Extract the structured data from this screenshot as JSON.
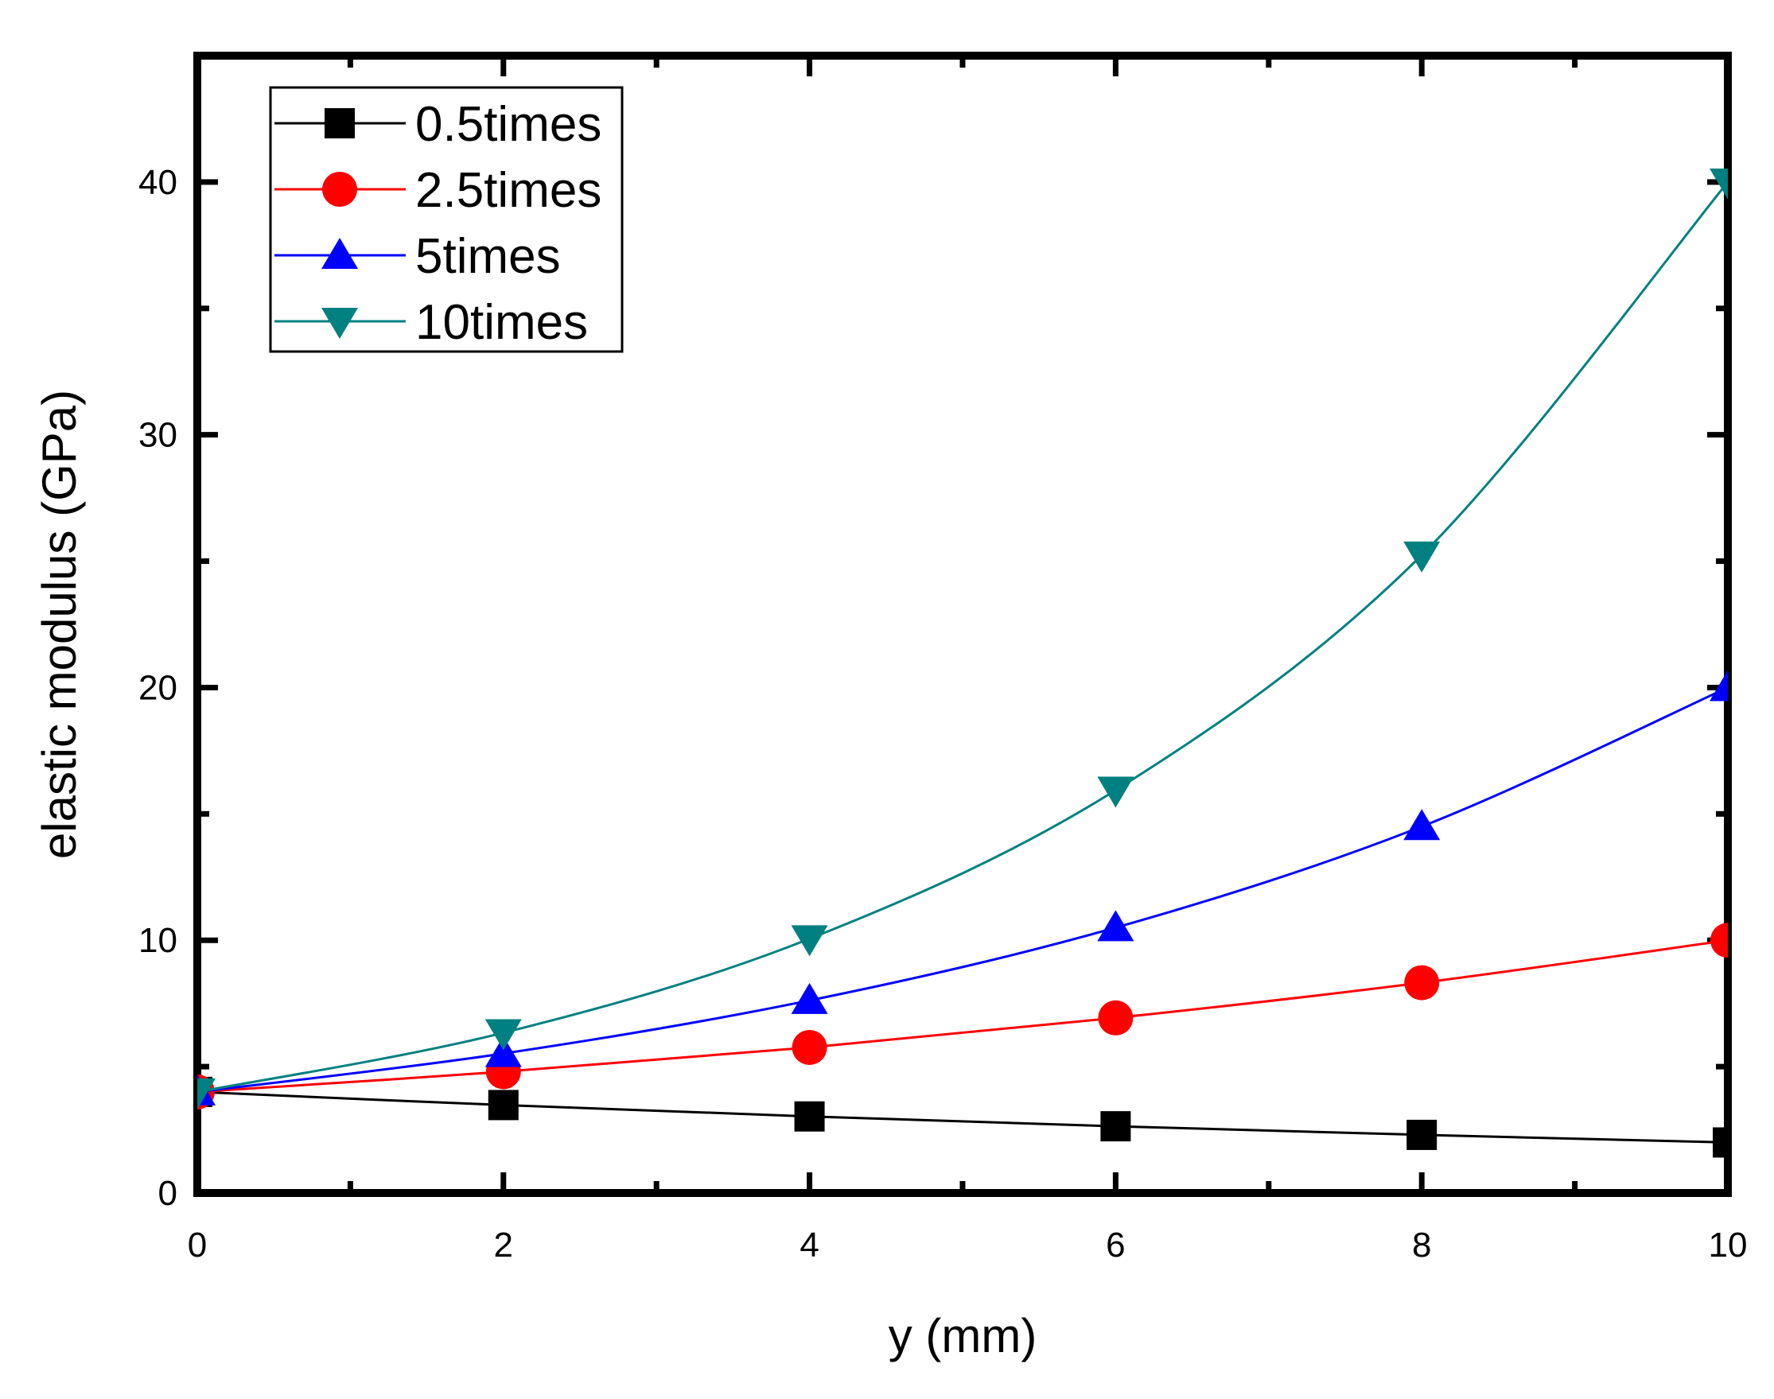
{
  "chart_data": {
    "type": "line",
    "title": "",
    "xlabel": "y (mm)",
    "ylabel": "elastic modulus (GPa)",
    "xlim": [
      0,
      10
    ],
    "ylim": [
      0,
      45
    ],
    "xticks": [
      0,
      2,
      4,
      6,
      8,
      10
    ],
    "xtick_labels": [
      "0",
      "2",
      "4",
      "6",
      "8",
      "10"
    ],
    "yticks": [
      0,
      10,
      20,
      30,
      40
    ],
    "ytick_labels": [
      "0",
      "10",
      "20",
      "30",
      "40"
    ],
    "grid": false,
    "legend_position": "top-left",
    "series": [
      {
        "name": "0.5times",
        "color": "#000000",
        "marker": "square",
        "x": [
          0,
          2,
          4,
          6,
          8,
          10
        ],
        "values": [
          4.0,
          3.48,
          3.03,
          2.64,
          2.3,
          2.0
        ]
      },
      {
        "name": "2.5times",
        "color": "#ff0000",
        "marker": "circle",
        "x": [
          0,
          2,
          4,
          6,
          8,
          10
        ],
        "values": [
          4.0,
          4.8,
          5.76,
          6.93,
          8.32,
          10.0
        ]
      },
      {
        "name": "5times",
        "color": "#0000ff",
        "marker": "triangle-up",
        "x": [
          0,
          2,
          4,
          6,
          8,
          10
        ],
        "values": [
          4.0,
          5.52,
          7.62,
          10.5,
          14.5,
          20.0
        ]
      },
      {
        "name": "10times",
        "color": "#008080",
        "marker": "triangle-down",
        "x": [
          0,
          2,
          4,
          6,
          8,
          10
        ],
        "values": [
          4.0,
          6.34,
          10.06,
          15.94,
          25.24,
          40.0
        ]
      }
    ]
  }
}
